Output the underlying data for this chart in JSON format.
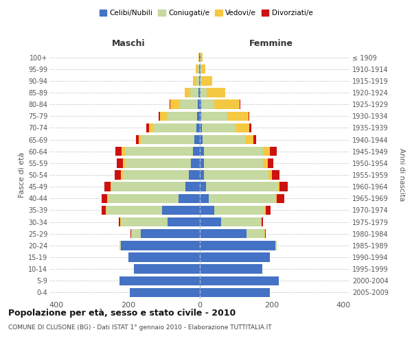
{
  "age_groups": [
    "0-4",
    "5-9",
    "10-14",
    "15-19",
    "20-24",
    "25-29",
    "30-34",
    "35-39",
    "40-44",
    "45-49",
    "50-54",
    "55-59",
    "60-64",
    "65-69",
    "70-74",
    "75-79",
    "80-84",
    "85-89",
    "90-94",
    "95-99",
    "100+"
  ],
  "birth_years": [
    "2005-2009",
    "2000-2004",
    "1995-1999",
    "1990-1994",
    "1985-1989",
    "1980-1984",
    "1975-1979",
    "1970-1974",
    "1965-1969",
    "1960-1964",
    "1955-1959",
    "1950-1954",
    "1945-1949",
    "1940-1944",
    "1935-1939",
    "1930-1934",
    "1925-1929",
    "1920-1924",
    "1915-1919",
    "1910-1914",
    "≤ 1909"
  ],
  "males_celibi": [
    195,
    225,
    185,
    200,
    220,
    165,
    90,
    105,
    60,
    40,
    30,
    25,
    20,
    15,
    10,
    8,
    5,
    4,
    2,
    2,
    1
  ],
  "males_coniugati": [
    0,
    0,
    0,
    0,
    5,
    25,
    130,
    155,
    195,
    205,
    185,
    185,
    190,
    150,
    120,
    85,
    50,
    22,
    8,
    4,
    1
  ],
  "males_vedovi": [
    0,
    0,
    0,
    0,
    0,
    2,
    2,
    2,
    3,
    4,
    5,
    5,
    8,
    5,
    12,
    18,
    28,
    16,
    10,
    5,
    2
  ],
  "males_divorziati": [
    0,
    0,
    0,
    0,
    0,
    2,
    4,
    12,
    17,
    17,
    17,
    17,
    18,
    8,
    8,
    5,
    2,
    1,
    0,
    0,
    0
  ],
  "females_celibi": [
    195,
    220,
    175,
    195,
    210,
    130,
    60,
    40,
    25,
    18,
    12,
    12,
    12,
    8,
    5,
    4,
    3,
    2,
    1,
    1,
    1
  ],
  "females_coniugati": [
    0,
    0,
    0,
    0,
    5,
    50,
    110,
    140,
    185,
    200,
    180,
    165,
    165,
    120,
    95,
    72,
    38,
    18,
    5,
    2,
    1
  ],
  "females_vedovi": [
    0,
    0,
    0,
    0,
    0,
    2,
    2,
    5,
    5,
    5,
    10,
    12,
    18,
    22,
    38,
    60,
    70,
    50,
    28,
    13,
    5
  ],
  "females_divorziati": [
    0,
    0,
    0,
    0,
    0,
    2,
    5,
    13,
    20,
    22,
    20,
    17,
    20,
    8,
    5,
    2,
    2,
    1,
    0,
    0,
    0
  ],
  "color_celibi": "#4472c4",
  "color_coniugati": "#c5d9a0",
  "color_vedovi": "#f5c842",
  "color_divorziati": "#cc1111",
  "xlim": 420,
  "title1": "Popolazione per età, sesso e stato civile - 2010",
  "title2": "COMUNE DI CLUSONE (BG) - Dati ISTAT 1° gennaio 2010 - Elaborazione TUTTITALIA.IT",
  "ylabel": "Fasce di età",
  "ylabel_right": "Anni di nascita",
  "label_maschi": "Maschi",
  "label_femmine": "Femmine",
  "legend_celibi": "Celibi/Nubili",
  "legend_coniugati": "Coniugati/e",
  "legend_vedovi": "Vedovi/e",
  "legend_divorziati": "Divorziati/e",
  "bg_color": "#f5f5f5"
}
